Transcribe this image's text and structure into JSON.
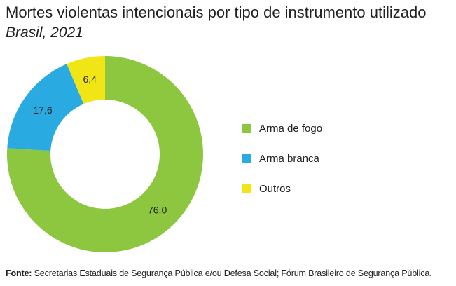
{
  "title": "Mortes violentas intencionais por tipo de instrumento utilizado",
  "subtitle": "Brasil, 2021",
  "source": {
    "label": "Fonte:",
    "text": "Secretarias Estaduais de Segurança Pública e/ou Defesa Social; Fórum Brasileiro de Segurança Pública."
  },
  "chart_data": {
    "type": "pie",
    "donut": true,
    "categories": [
      "Arma de fogo",
      "Arma branca",
      "Outros"
    ],
    "values": [
      76.0,
      17.6,
      6.4
    ],
    "labels": [
      "76,0",
      "17,6",
      "6,4"
    ],
    "colors": [
      "#8dc63f",
      "#29abe2",
      "#f2e515"
    ],
    "legend_position": "right"
  }
}
